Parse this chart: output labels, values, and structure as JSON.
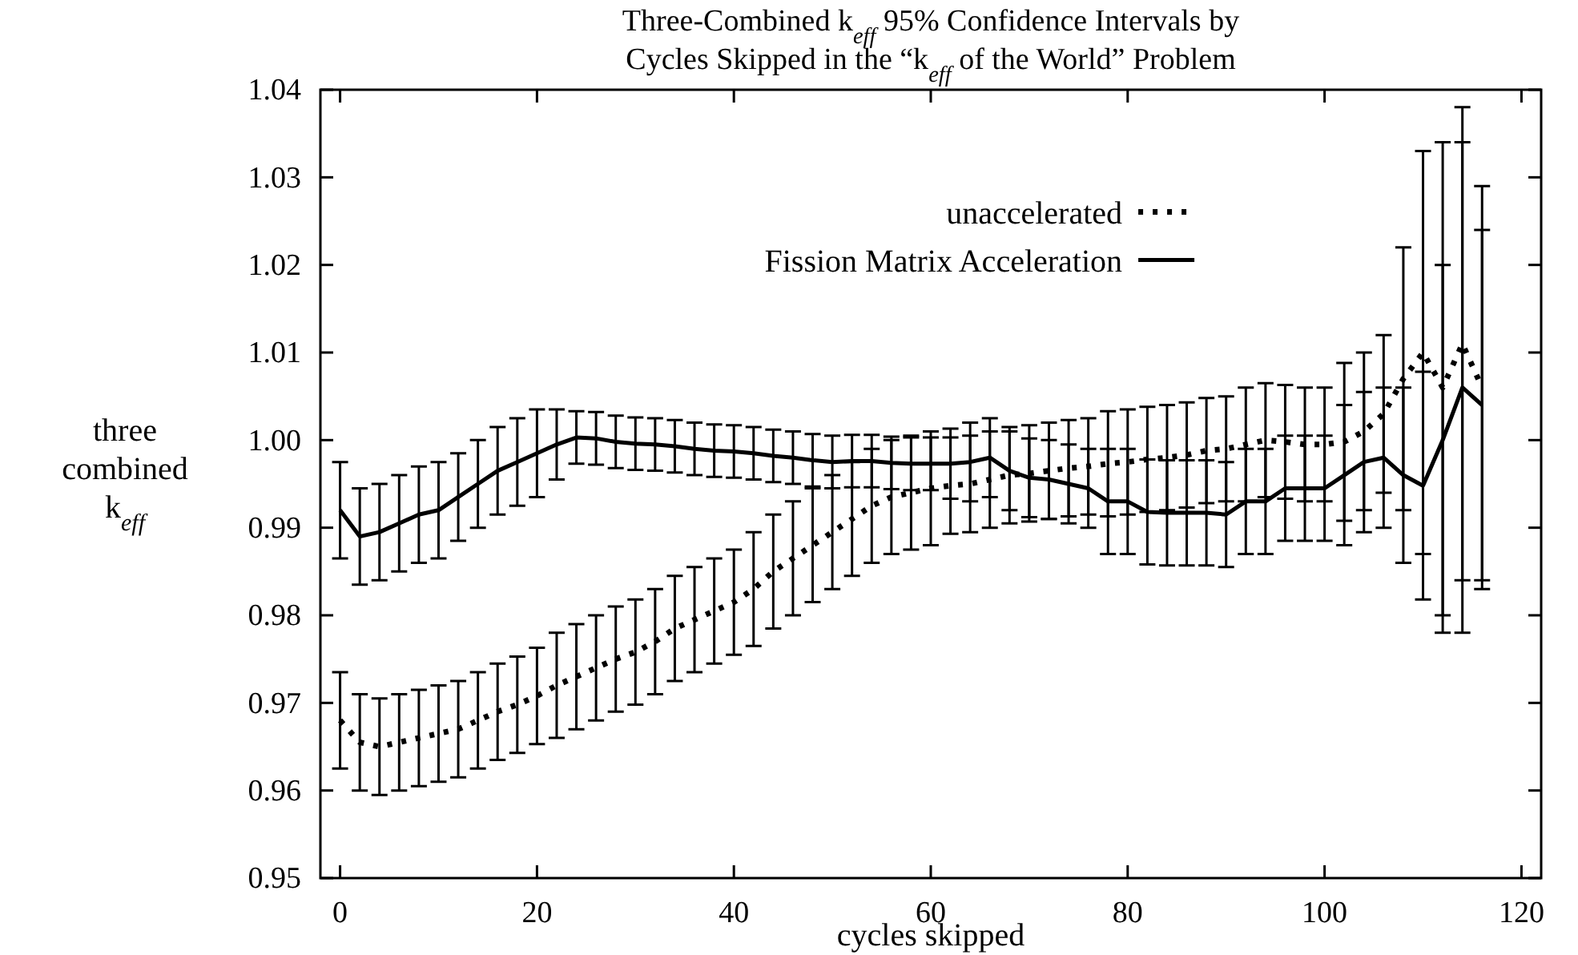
{
  "chart_data": {
    "type": "line",
    "title": "Three-Combined k$_{eff}$ 95% Confidence Intervals by Cycles Skipped in the “k$_{eff}$ of the World” Problem",
    "xlabel": "cycles skipped",
    "ylabel": "three combined k$_{eff}$",
    "xlim": [
      -2,
      122
    ],
    "xticks": [
      0,
      20,
      40,
      60,
      80,
      100,
      120
    ],
    "ylim": [
      0.95,
      1.04
    ],
    "yticks": [
      0.95,
      0.96,
      0.97,
      0.98,
      0.99,
      {
        "value": 1,
        "label": "1.00"
      },
      1.01,
      1.02,
      1.03,
      1.04
    ],
    "grid": false,
    "legend": "top",
    "x": [
      0,
      2,
      4,
      6,
      8,
      10,
      12,
      14,
      16,
      18,
      20,
      22,
      24,
      26,
      28,
      30,
      32,
      34,
      36,
      38,
      40,
      42,
      44,
      46,
      48,
      50,
      52,
      54,
      56,
      58,
      60,
      62,
      64,
      66,
      68,
      70,
      72,
      74,
      76,
      78,
      80,
      82,
      84,
      86,
      88,
      90,
      92,
      94,
      96,
      98,
      100,
      102,
      104,
      106,
      108,
      110,
      112,
      114,
      116
    ],
    "series": [
      {
        "name": "unaccelerated",
        "color": "#000000",
        "line_style": "dotted",
        "values": [
          0.968,
          0.9655,
          0.965,
          0.9655,
          0.966,
          0.9665,
          0.967,
          0.968,
          0.969,
          0.9698,
          0.9708,
          0.972,
          0.973,
          0.974,
          0.975,
          0.9758,
          0.977,
          0.9785,
          0.9795,
          0.9805,
          0.9815,
          0.983,
          0.985,
          0.9865,
          0.988,
          0.9895,
          0.991,
          0.9925,
          0.9935,
          0.994,
          0.9945,
          0.9948,
          0.995,
          0.9955,
          0.996,
          0.9962,
          0.9965,
          0.9968,
          0.997,
          0.9973,
          0.9975,
          0.9978,
          0.998,
          0.9983,
          0.9988,
          0.999,
          0.9995,
          1.0,
          0.9998,
          0.9995,
          0.9995,
          0.9998,
          1.001,
          1.003,
          1.007,
          1.01,
          1.006,
          1.011,
          1.006
        ],
        "errors": [
          0.0055,
          0.0055,
          0.0055,
          0.0055,
          0.0055,
          0.0055,
          0.0055,
          0.0055,
          0.0055,
          0.0055,
          0.0055,
          0.006,
          0.006,
          0.006,
          0.006,
          0.006,
          0.006,
          0.006,
          0.006,
          0.006,
          0.006,
          0.0065,
          0.0065,
          0.0065,
          0.0065,
          0.0065,
          0.0065,
          0.0065,
          0.0065,
          0.0065,
          0.0065,
          0.0055,
          0.0055,
          0.0055,
          0.0055,
          0.0055,
          0.0055,
          0.0055,
          0.0055,
          0.006,
          0.006,
          0.006,
          0.006,
          0.006,
          0.006,
          0.006,
          0.0065,
          0.0065,
          0.0065,
          0.0065,
          0.0065,
          0.009,
          0.009,
          0.009,
          0.015,
          0.023,
          0.028,
          0.027,
          0.023
        ]
      },
      {
        "name": "Fission Matrix Acceleration",
        "color": "#000000",
        "line_style": "solid",
        "values": [
          0.992,
          0.989,
          0.9895,
          0.9905,
          0.9915,
          0.992,
          0.9935,
          0.995,
          0.9965,
          0.9975,
          0.9985,
          0.9995,
          1.0003,
          1.0002,
          0.9998,
          0.9996,
          0.9995,
          0.9993,
          0.999,
          0.9988,
          0.9987,
          0.9985,
          0.9982,
          0.998,
          0.9977,
          0.9975,
          0.9976,
          0.9976,
          0.9974,
          0.9973,
          0.9973,
          0.9973,
          0.9975,
          0.998,
          0.9965,
          0.9957,
          0.9955,
          0.995,
          0.9945,
          0.993,
          0.993,
          0.9918,
          0.9917,
          0.9917,
          0.9917,
          0.9915,
          0.993,
          0.993,
          0.9945,
          0.9945,
          0.9945,
          0.996,
          0.9975,
          0.998,
          0.996,
          0.9948,
          1.0,
          1.006,
          1.004
        ],
        "errors": [
          0.0055,
          0.0055,
          0.0055,
          0.0055,
          0.0055,
          0.0055,
          0.005,
          0.005,
          0.005,
          0.005,
          0.005,
          0.004,
          0.003,
          0.003,
          0.003,
          0.003,
          0.003,
          0.003,
          0.003,
          0.003,
          0.003,
          0.003,
          0.003,
          0.003,
          0.003,
          0.003,
          0.003,
          0.003,
          0.003,
          0.003,
          0.003,
          0.004,
          0.0045,
          0.0045,
          0.0045,
          0.0045,
          0.0045,
          0.0045,
          0.0045,
          0.006,
          0.006,
          0.006,
          0.006,
          0.006,
          0.006,
          0.006,
          0.006,
          0.006,
          0.006,
          0.006,
          0.006,
          0.008,
          0.008,
          0.008,
          0.01,
          0.013,
          0.02,
          0.028,
          0.02
        ]
      }
    ]
  }
}
